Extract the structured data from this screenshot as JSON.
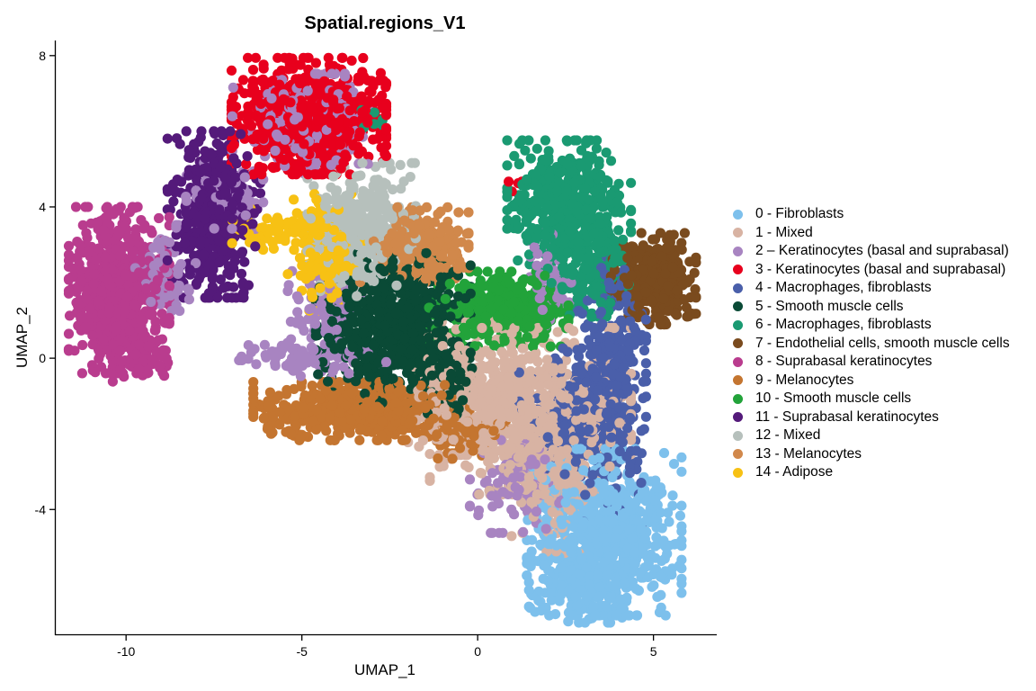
{
  "chart_data": {
    "type": "scatter",
    "title": "Spatial.regions_V1",
    "xlabel": "UMAP_1",
    "ylabel": "UMAP_2",
    "xlim": [
      -12.0,
      6.8
    ],
    "ylim": [
      -7.3,
      8.4
    ],
    "xticks": [
      -10,
      -5,
      0,
      5
    ],
    "yticks": [
      -4,
      0,
      4,
      8
    ],
    "grid": false,
    "legend_position": "right",
    "series": [
      {
        "name": "0 - Fibroblasts",
        "color": "#7DC0EC",
        "clusters": [
          {
            "cx": 3.6,
            "cy": -4.6,
            "sx": 1.0,
            "sy": 1.0,
            "n": 700
          },
          {
            "cx": 3.0,
            "cy": -6.0,
            "sx": 0.7,
            "sy": 0.45,
            "n": 200
          }
        ]
      },
      {
        "name": "1 - Mixed",
        "color": "#D8B3A3",
        "clusters": [
          {
            "cx": 1.5,
            "cy": -1.4,
            "sx": 1.3,
            "sy": 1.0,
            "n": 600
          },
          {
            "cx": 0.0,
            "cy": -0.8,
            "sx": 0.9,
            "sy": 0.8,
            "n": 200
          },
          {
            "cx": 2.2,
            "cy": -3.4,
            "sx": 0.6,
            "sy": 0.8,
            "n": 150
          }
        ]
      },
      {
        "name": "2 – Keratinocytes (basal and suprabasal)",
        "color": "#A884C1",
        "clusters": [
          {
            "cx": -5.0,
            "cy": 6.2,
            "sx": 0.9,
            "sy": 0.6,
            "n": 180
          },
          {
            "cx": -4.7,
            "cy": 0.0,
            "sx": 1.0,
            "sy": 0.25,
            "n": 100
          },
          {
            "cx": -8.9,
            "cy": 2.2,
            "sx": 0.4,
            "sy": 0.6,
            "n": 70
          },
          {
            "cx": -7.2,
            "cy": 4.3,
            "sx": 0.5,
            "sy": 0.4,
            "n": 60
          },
          {
            "cx": 1.1,
            "cy": -3.3,
            "sx": 0.6,
            "sy": 0.6,
            "n": 100
          },
          {
            "cx": 2.0,
            "cy": 2.0,
            "sx": 0.3,
            "sy": 0.6,
            "n": 60
          },
          {
            "cx": -4.3,
            "cy": 1.2,
            "sx": 0.5,
            "sy": 0.5,
            "n": 80
          }
        ]
      },
      {
        "name": "3 - Keratinocytes (basal and suprabasal)",
        "color": "#E8001D",
        "clusters": [
          {
            "cx": -4.8,
            "cy": 6.4,
            "sx": 1.0,
            "sy": 0.7,
            "n": 750
          },
          {
            "cx": 1.1,
            "cy": 4.6,
            "sx": 0.1,
            "sy": 0.1,
            "n": 4
          }
        ]
      },
      {
        "name": "4 - Macrophages, fibroblasts",
        "color": "#4A5FAA",
        "clusters": [
          {
            "cx": 3.8,
            "cy": -0.8,
            "sx": 0.45,
            "sy": 1.6,
            "n": 400
          },
          {
            "cx": 2.5,
            "cy": -1.5,
            "sx": 0.6,
            "sy": 0.8,
            "n": 150
          }
        ]
      },
      {
        "name": "5 - Smooth muscle cells",
        "color": "#0A4A36",
        "clusters": [
          {
            "cx": -2.4,
            "cy": 0.8,
            "sx": 1.0,
            "sy": 0.9,
            "n": 700
          },
          {
            "cx": -1.0,
            "cy": -0.6,
            "sx": 0.4,
            "sy": 0.4,
            "n": 80
          }
        ]
      },
      {
        "name": "6 - Macrophages, fibroblasts",
        "color": "#1A9A72",
        "clusters": [
          {
            "cx": 2.6,
            "cy": 4.0,
            "sx": 0.8,
            "sy": 0.8,
            "n": 500
          },
          {
            "cx": 3.2,
            "cy": 2.2,
            "sx": 0.5,
            "sy": 0.5,
            "n": 150
          },
          {
            "cx": -3.1,
            "cy": 6.4,
            "sx": 0.2,
            "sy": 0.2,
            "n": 10
          }
        ]
      },
      {
        "name": "7 - Endothelial cells, smooth muscle cells",
        "color": "#7A4B1E",
        "clusters": [
          {
            "cx": 5.0,
            "cy": 2.1,
            "sx": 0.55,
            "sy": 0.55,
            "n": 350
          }
        ]
      },
      {
        "name": "8 - Suprabasal keratinocytes",
        "color": "#B93C8E",
        "clusters": [
          {
            "cx": -10.2,
            "cy": 1.8,
            "sx": 0.65,
            "sy": 1.0,
            "n": 700
          },
          {
            "cx": -9.5,
            "cy": 0.0,
            "sx": 0.4,
            "sy": 0.3,
            "n": 60
          }
        ]
      },
      {
        "name": "9 - Melanocytes",
        "color": "#C47530",
        "clusters": [
          {
            "cx": -3.3,
            "cy": -1.4,
            "sx": 1.4,
            "sy": 0.35,
            "n": 600
          },
          {
            "cx": -0.3,
            "cy": -2.0,
            "sx": 0.5,
            "sy": 0.3,
            "n": 80
          }
        ]
      },
      {
        "name": "10 - Smooth muscle cells",
        "color": "#22A33A",
        "clusters": [
          {
            "cx": 0.6,
            "cy": 1.3,
            "sx": 0.9,
            "sy": 0.45,
            "n": 350
          }
        ]
      },
      {
        "name": "11 - Suprabasal keratinocytes",
        "color": "#541A7A",
        "clusters": [
          {
            "cx": -7.5,
            "cy": 3.8,
            "sx": 0.6,
            "sy": 1.0,
            "n": 450
          }
        ]
      },
      {
        "name": "12 - Mixed",
        "color": "#B6C0BC",
        "clusters": [
          {
            "cx": -3.3,
            "cy": 3.4,
            "sx": 0.7,
            "sy": 0.8,
            "n": 400
          }
        ]
      },
      {
        "name": "13 - Melanocytes",
        "color": "#D1884B",
        "clusters": [
          {
            "cx": -1.8,
            "cy": 3.0,
            "sx": 0.7,
            "sy": 0.45,
            "n": 300
          }
        ]
      },
      {
        "name": "14 - Adipose",
        "color": "#F7C114",
        "clusters": [
          {
            "cx": -4.3,
            "cy": 2.8,
            "sx": 0.5,
            "sy": 0.7,
            "n": 200
          },
          {
            "cx": -5.8,
            "cy": 3.4,
            "sx": 0.6,
            "sy": 0.25,
            "n": 60
          }
        ]
      }
    ]
  }
}
